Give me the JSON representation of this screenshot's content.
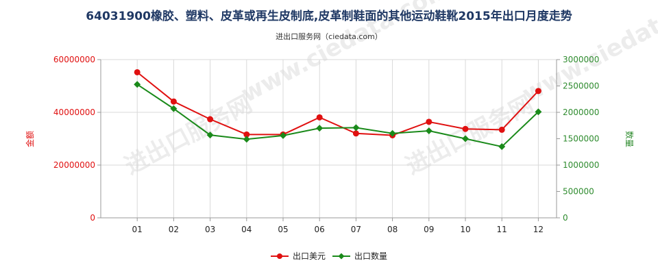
{
  "chart_data": {
    "type": "line",
    "title": "64031900橡胶、塑料、皮革或再生皮制底,皮革制鞋面的其他运动鞋靴2015年出口月度走势",
    "subtitle": "进出口服务网（ciedata.com）",
    "categories": [
      "01",
      "02",
      "03",
      "04",
      "05",
      "06",
      "07",
      "08",
      "09",
      "10",
      "11",
      "12"
    ],
    "y_left": {
      "label": "金额",
      "ylim": [
        0,
        60000000
      ],
      "ticks": [
        0,
        20000000,
        40000000,
        60000000
      ]
    },
    "y_right": {
      "label": "数量",
      "ylim": [
        0,
        3000000
      ],
      "ticks": [
        0,
        500000,
        1000000,
        1500000,
        2000000,
        2500000,
        3000000
      ]
    },
    "series": [
      {
        "name": "出口美元",
        "axis": "left",
        "color": "#e01010",
        "values": [
          55200000,
          44100000,
          37400000,
          31600000,
          31600000,
          38100000,
          32000000,
          31300000,
          36400000,
          33700000,
          33400000,
          48100000
        ]
      },
      {
        "name": "出口数量",
        "axis": "right",
        "color": "#1a8a1a",
        "values": [
          2530000,
          2070000,
          1570000,
          1490000,
          1560000,
          1700000,
          1710000,
          1600000,
          1650000,
          1500000,
          1350000,
          2010000
        ]
      }
    ],
    "grid": true,
    "legend": "bottom-center"
  }
}
